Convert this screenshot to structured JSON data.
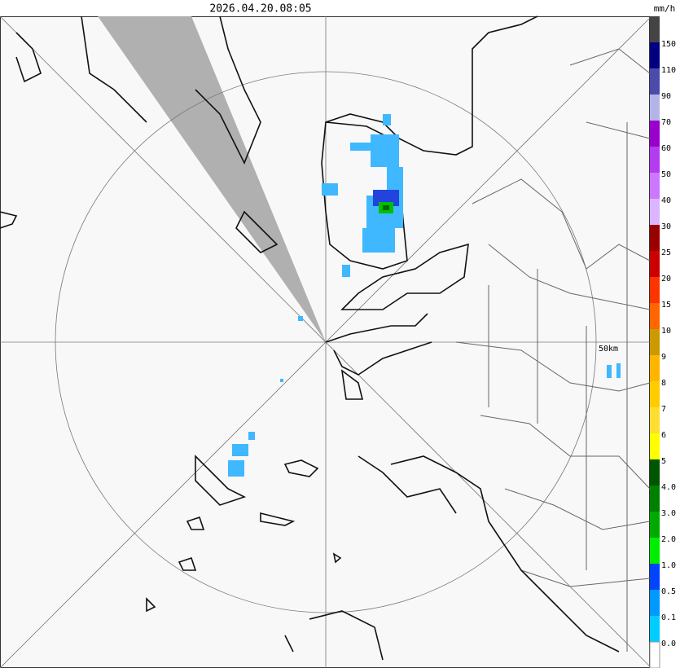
{
  "header": {
    "timestamp": "2026.04.20.08:05",
    "unit": "mm/h"
  },
  "map": {
    "scale_label": "50km"
  },
  "legend": {
    "items": [
      {
        "label": "150",
        "color": "#444444"
      },
      {
        "label": "110",
        "color": "#000080"
      },
      {
        "label": "90",
        "color": "#4b4bab"
      },
      {
        "label": "70",
        "color": "#b4b4e6"
      },
      {
        "label": "60",
        "color": "#9900cc"
      },
      {
        "label": "50",
        "color": "#b23cf0"
      },
      {
        "label": "40",
        "color": "#cc77ff"
      },
      {
        "label": "30",
        "color": "#dcb4ff"
      },
      {
        "label": "25",
        "color": "#990000"
      },
      {
        "label": "20",
        "color": "#cc0000"
      },
      {
        "label": "15",
        "color": "#ff3300"
      },
      {
        "label": "10",
        "color": "#ff6600"
      },
      {
        "label": "9",
        "color": "#cc9900"
      },
      {
        "label": "8",
        "color": "#ffb400"
      },
      {
        "label": "7",
        "color": "#ffcc00"
      },
      {
        "label": "6",
        "color": "#ffdd33"
      },
      {
        "label": "5",
        "color": "#ffff00"
      },
      {
        "label": "4.0",
        "color": "#005500"
      },
      {
        "label": "3.0",
        "color": "#008000"
      },
      {
        "label": "2.0",
        "color": "#00aa00"
      },
      {
        "label": "1.0",
        "color": "#00ee00"
      },
      {
        "label": "0.5",
        "color": "#0044ff"
      },
      {
        "label": "0.1",
        "color": "#0099ff"
      },
      {
        "label": "0.0",
        "color": "#00ccff"
      }
    ]
  }
}
